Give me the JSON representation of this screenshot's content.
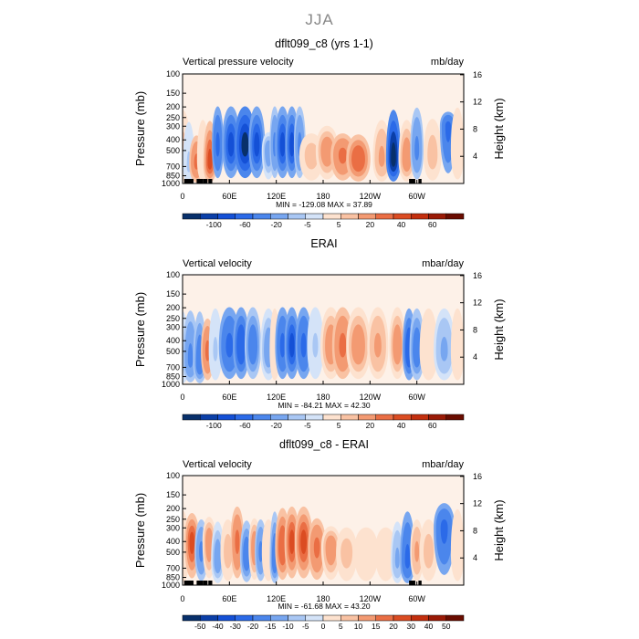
{
  "page": {
    "title": "JJA"
  },
  "colors": {
    "neg": [
      "#08306b",
      "#0b3fa8",
      "#1450d6",
      "#2b6ae8",
      "#4b86ec",
      "#77a6f0",
      "#a9c7f4",
      "#d4e3f8"
    ],
    "pos": [
      "#fde2cf",
      "#f9c2a3",
      "#f39a72",
      "#ea6e44",
      "#db4c22",
      "#c32f0e",
      "#9a1a06",
      "#6a0c00"
    ]
  },
  "chart_data": [
    {
      "type": "heatmap",
      "title": "dflt099_c8 (yrs 1-1)",
      "left_label": "Vertical pressure velocity",
      "right_label": "mb/day",
      "ylabel": "Pressure (mb)",
      "ylabel_right": "Height (km)",
      "x_ticks": [
        "0",
        "60E",
        "120E",
        "180",
        "120W",
        "60W"
      ],
      "x_tick_lons": [
        0,
        60,
        120,
        180,
        240,
        300
      ],
      "xlim": [
        0,
        360
      ],
      "y_ticks": [
        "100",
        "150",
        "200",
        "250",
        "300",
        "400",
        "500",
        "700",
        "850",
        "1000"
      ],
      "y_tick_values": [
        100,
        150,
        200,
        250,
        300,
        400,
        500,
        700,
        850,
        1000
      ],
      "ylim": [
        100,
        1000
      ],
      "y_scale": "log",
      "height_ticks": [
        "4",
        "8",
        "12",
        "16"
      ],
      "height_tick_values": [
        4,
        8,
        12,
        16
      ],
      "min_max_text": "MIN = -129.08   MAX =  37.89",
      "min": -129.08,
      "max": 37.89,
      "colorbar_labels": [
        "-100",
        "-60",
        "-20",
        "-5",
        "5",
        "20",
        "40",
        "60"
      ],
      "field": {
        "lon_centers": [
          0,
          8,
          18,
          26,
          35,
          45,
          62,
          80,
          95,
          110,
          118,
          128,
          140,
          150,
          165,
          185,
          205,
          225,
          255,
          270,
          287,
          300,
          320,
          340,
          352
        ],
        "lon_widths": [
          14,
          8,
          12,
          8,
          10,
          8,
          16,
          20,
          14,
          10,
          6,
          12,
          10,
          8,
          24,
          22,
          24,
          24,
          16,
          12,
          14,
          10,
          16,
          14,
          10
        ],
        "values": [
          8,
          -5,
          25,
          5,
          35,
          -45,
          -70,
          -100,
          -60,
          -15,
          -25,
          -60,
          -75,
          -20,
          10,
          18,
          25,
          30,
          12,
          -110,
          15,
          -25,
          10,
          -50,
          5
        ],
        "top_mb": [
          150,
          200,
          300,
          200,
          200,
          150,
          150,
          150,
          150,
          300,
          150,
          150,
          150,
          150,
          300,
          250,
          300,
          300,
          200,
          150,
          200,
          150,
          200,
          200,
          150
        ],
        "center_mb": [
          600,
          700,
          650,
          600,
          650,
          450,
          450,
          450,
          450,
          500,
          450,
          450,
          450,
          450,
          550,
          500,
          550,
          600,
          600,
          600,
          600,
          500,
          550,
          300,
          500
        ]
      },
      "topo_blocks_lons": [
        [
          2,
          14
        ],
        [
          18,
          26
        ],
        [
          26,
          32
        ],
        [
          33,
          38
        ],
        [
          290,
          298
        ],
        [
          302,
          306
        ]
      ]
    },
    {
      "type": "heatmap",
      "title": "ERAI",
      "left_label": "Vertical velocity",
      "right_label": "mbar/day",
      "ylabel": "Pressure (mb)",
      "ylabel_right": "Height (km)",
      "x_ticks": [
        "0",
        "60E",
        "120E",
        "180",
        "120W",
        "60W"
      ],
      "x_tick_lons": [
        0,
        60,
        120,
        180,
        240,
        300
      ],
      "xlim": [
        0,
        360
      ],
      "y_ticks": [
        "100",
        "150",
        "200",
        "250",
        "300",
        "400",
        "500",
        "700",
        "850",
        "1000"
      ],
      "y_tick_values": [
        100,
        150,
        200,
        250,
        300,
        400,
        500,
        700,
        850,
        1000
      ],
      "ylim": [
        100,
        1000
      ],
      "y_scale": "log",
      "height_ticks": [
        "4",
        "8",
        "12",
        "16"
      ],
      "height_tick_values": [
        4,
        8,
        12,
        16
      ],
      "min_max_text": "MIN = -84.21   MAX =  42.30",
      "min": -84.21,
      "max": 42.3,
      "colorbar_labels": [
        "-100",
        "-60",
        "-20",
        "-5",
        "5",
        "20",
        "40",
        "60"
      ],
      "field": {
        "lon_centers": [
          0,
          10,
          22,
          32,
          42,
          60,
          75,
          90,
          110,
          118,
          128,
          140,
          155,
          170,
          190,
          205,
          225,
          250,
          275,
          290,
          300,
          315,
          335,
          352
        ],
        "lon_widths": [
          10,
          12,
          10,
          10,
          10,
          20,
          14,
          14,
          14,
          6,
          12,
          12,
          14,
          14,
          20,
          20,
          24,
          20,
          14,
          10,
          12,
          16,
          20,
          10
        ],
        "values": [
          -5,
          -25,
          -35,
          25,
          -5,
          -40,
          -55,
          -30,
          -15,
          5,
          -40,
          -70,
          -50,
          -5,
          15,
          25,
          18,
          12,
          15,
          -55,
          -35,
          5,
          -10,
          3
        ],
        "top_mb": [
          150,
          150,
          150,
          200,
          150,
          150,
          150,
          150,
          150,
          150,
          150,
          150,
          150,
          150,
          150,
          150,
          150,
          150,
          150,
          150,
          150,
          150,
          150,
          150
        ],
        "center_mb": [
          650,
          600,
          650,
          500,
          500,
          450,
          450,
          450,
          500,
          500,
          450,
          450,
          450,
          450,
          450,
          450,
          450,
          450,
          450,
          500,
          500,
          500,
          500,
          500
        ]
      },
      "topo_blocks_lons": []
    },
    {
      "type": "heatmap",
      "title": "dflt099_c8 - ERAI",
      "left_label": "Vertical velocity",
      "right_label": "mbar/day",
      "ylabel": "Pressure (mb)",
      "ylabel_right": "Height (km)",
      "x_ticks": [
        "0",
        "60E",
        "120E",
        "180",
        "120W",
        "60W"
      ],
      "x_tick_lons": [
        0,
        60,
        120,
        180,
        240,
        300
      ],
      "xlim": [
        0,
        360
      ],
      "y_ticks": [
        "100",
        "150",
        "200",
        "250",
        "300",
        "400",
        "500",
        "700",
        "850",
        "1000"
      ],
      "y_tick_values": [
        100,
        150,
        200,
        250,
        300,
        400,
        500,
        700,
        850,
        1000
      ],
      "ylim": [
        100,
        1000
      ],
      "y_scale": "log",
      "height_ticks": [
        "4",
        "8",
        "12",
        "16"
      ],
      "height_tick_values": [
        4,
        8,
        12,
        16
      ],
      "min_max_text": "MIN = -61.68   MAX =  43.20",
      "min": -61.68,
      "max": 43.2,
      "colorbar_labels": [
        "-50",
        "-40",
        "-30",
        "-20",
        "-15",
        "-10",
        "-5",
        "0",
        "5",
        "10",
        "15",
        "20",
        "30",
        "40",
        "50"
      ],
      "field": {
        "lon_centers": [
          0,
          12,
          24,
          34,
          45,
          58,
          70,
          82,
          92,
          100,
          110,
          118,
          128,
          140,
          155,
          172,
          190,
          210,
          235,
          260,
          275,
          288,
          300,
          315,
          335,
          352
        ],
        "lon_widths": [
          10,
          12,
          10,
          10,
          10,
          12,
          10,
          10,
          8,
          8,
          10,
          6,
          12,
          12,
          16,
          16,
          18,
          20,
          24,
          20,
          10,
          12,
          10,
          16,
          20,
          10
        ],
        "values": [
          5,
          35,
          -25,
          20,
          -15,
          10,
          25,
          -30,
          15,
          -20,
          5,
          -35,
          30,
          40,
          35,
          25,
          15,
          8,
          5,
          3,
          -10,
          -40,
          12,
          8,
          -45,
          5
        ],
        "top_mb": [
          150,
          180,
          200,
          200,
          200,
          200,
          150,
          200,
          200,
          200,
          200,
          150,
          150,
          150,
          150,
          200,
          250,
          250,
          250,
          250,
          200,
          150,
          200,
          200,
          150,
          150
        ],
        "center_mb": [
          550,
          400,
          500,
          400,
          600,
          500,
          400,
          550,
          450,
          500,
          500,
          600,
          450,
          400,
          400,
          450,
          450,
          500,
          500,
          500,
          600,
          600,
          500,
          500,
          300,
          500
        ]
      },
      "topo_blocks_lons": [
        [
          2,
          14
        ],
        [
          18,
          26
        ],
        [
          26,
          32
        ],
        [
          33,
          38
        ],
        [
          290,
          298
        ],
        [
          302,
          306
        ]
      ]
    }
  ]
}
